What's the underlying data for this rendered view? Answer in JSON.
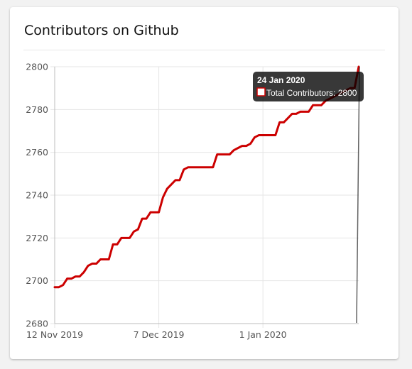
{
  "card": {
    "title": "Contributors on Github"
  },
  "chart_data": {
    "type": "line",
    "title": "Contributors on Github",
    "xlabel": "",
    "ylabel": "",
    "x_axis": {
      "type": "date",
      "min": "2019-11-12",
      "max": "2020-01-24",
      "ticks": [
        {
          "date": "2019-11-12",
          "label": "12 Nov 2019"
        },
        {
          "date": "2019-12-07",
          "label": "7 Dec 2019"
        },
        {
          "date": "2020-01-01",
          "label": "1 Jan 2020"
        }
      ]
    },
    "y_axis": {
      "min": 2680,
      "max": 2800,
      "ticks": [
        2680,
        2700,
        2720,
        2740,
        2760,
        2780,
        2800
      ]
    },
    "grid": true,
    "legend": "none",
    "series": [
      {
        "name": "Total Contributors",
        "color": "#cc0000",
        "points": [
          [
            "2019-11-12",
            2697
          ],
          [
            "2019-11-13",
            2697
          ],
          [
            "2019-11-14",
            2698
          ],
          [
            "2019-11-15",
            2701
          ],
          [
            "2019-11-16",
            2701
          ],
          [
            "2019-11-17",
            2702
          ],
          [
            "2019-11-18",
            2702
          ],
          [
            "2019-11-19",
            2704
          ],
          [
            "2019-11-20",
            2707
          ],
          [
            "2019-11-21",
            2708
          ],
          [
            "2019-11-22",
            2708
          ],
          [
            "2019-11-23",
            2710
          ],
          [
            "2019-11-24",
            2710
          ],
          [
            "2019-11-25",
            2710
          ],
          [
            "2019-11-26",
            2717
          ],
          [
            "2019-11-27",
            2717
          ],
          [
            "2019-11-28",
            2720
          ],
          [
            "2019-11-29",
            2720
          ],
          [
            "2019-11-30",
            2720
          ],
          [
            "2019-12-01",
            2723
          ],
          [
            "2019-12-02",
            2724
          ],
          [
            "2019-12-03",
            2729
          ],
          [
            "2019-12-04",
            2729
          ],
          [
            "2019-12-05",
            2732
          ],
          [
            "2019-12-06",
            2732
          ],
          [
            "2019-12-07",
            2732
          ],
          [
            "2019-12-08",
            2739
          ],
          [
            "2019-12-09",
            2743
          ],
          [
            "2019-12-10",
            2745
          ],
          [
            "2019-12-11",
            2747
          ],
          [
            "2019-12-12",
            2747
          ],
          [
            "2019-12-13",
            2752
          ],
          [
            "2019-12-14",
            2753
          ],
          [
            "2019-12-15",
            2753
          ],
          [
            "2019-12-16",
            2753
          ],
          [
            "2019-12-17",
            2753
          ],
          [
            "2019-12-18",
            2753
          ],
          [
            "2019-12-19",
            2753
          ],
          [
            "2019-12-20",
            2753
          ],
          [
            "2019-12-21",
            2759
          ],
          [
            "2019-12-22",
            2759
          ],
          [
            "2019-12-23",
            2759
          ],
          [
            "2019-12-24",
            2759
          ],
          [
            "2019-12-25",
            2761
          ],
          [
            "2019-12-26",
            2762
          ],
          [
            "2019-12-27",
            2763
          ],
          [
            "2019-12-28",
            2763
          ],
          [
            "2019-12-29",
            2764
          ],
          [
            "2019-12-30",
            2767
          ],
          [
            "2019-12-31",
            2768
          ],
          [
            "2020-01-01",
            2768
          ],
          [
            "2020-01-02",
            2768
          ],
          [
            "2020-01-03",
            2768
          ],
          [
            "2020-01-04",
            2768
          ],
          [
            "2020-01-05",
            2774
          ],
          [
            "2020-01-06",
            2774
          ],
          [
            "2020-01-07",
            2776
          ],
          [
            "2020-01-08",
            2778
          ],
          [
            "2020-01-09",
            2778
          ],
          [
            "2020-01-10",
            2779
          ],
          [
            "2020-01-11",
            2779
          ],
          [
            "2020-01-12",
            2779
          ],
          [
            "2020-01-13",
            2782
          ],
          [
            "2020-01-14",
            2782
          ],
          [
            "2020-01-15",
            2782
          ],
          [
            "2020-01-16",
            2784
          ],
          [
            "2020-01-17",
            2785
          ],
          [
            "2020-01-18",
            2786
          ],
          [
            "2020-01-19",
            2787
          ],
          [
            "2020-01-20",
            2788
          ],
          [
            "2020-01-21",
            2789
          ],
          [
            "2020-01-22",
            2790
          ],
          [
            "2020-01-23",
            2790
          ],
          [
            "2020-01-24",
            2800
          ]
        ]
      }
    ],
    "tooltip": {
      "title": "24 Jan 2020",
      "label": "Total Contributors: 2800",
      "swatch_border": "#cc0000",
      "swatch_fill": "#ffffff"
    }
  }
}
